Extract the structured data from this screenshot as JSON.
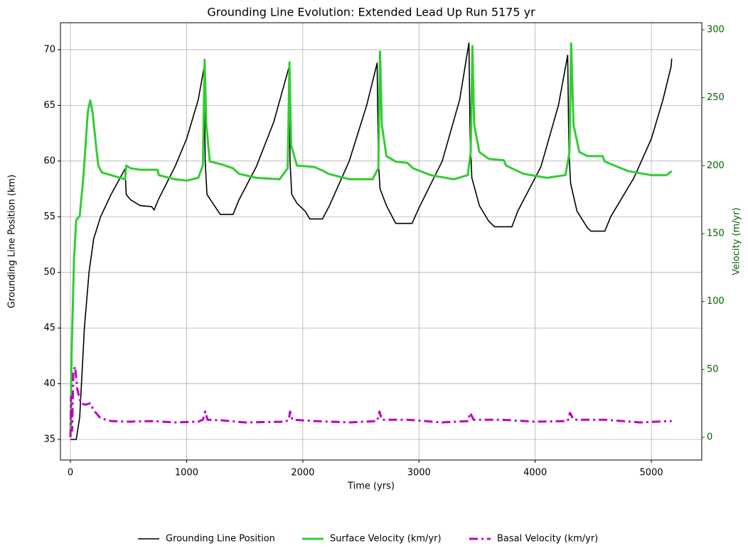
{
  "chart_data": {
    "type": "line",
    "title": "Grounding Line Evolution: Extended Lead Up Run 5175 yr",
    "x_label": "Time (yrs)",
    "y_label": "Grounding Line Position (km)",
    "y2_label": "Velocity (m/yr)",
    "xlim": [
      -86,
      5434
    ],
    "xticks": [
      0,
      1000,
      2000,
      3000,
      4000,
      5000
    ],
    "ylim": [
      33.15,
      72.42
    ],
    "yticks": [
      35,
      40,
      45,
      50,
      55,
      60,
      65,
      70
    ],
    "y2lim": [
      -16.7,
      305.2
    ],
    "y2ticks": [
      0,
      50,
      100,
      150,
      200,
      250,
      300
    ],
    "grid": true,
    "legend": "bottom",
    "series": [
      {
        "name": "Grounding Line Position",
        "color": "#000000",
        "width": 1.6,
        "x": [
          0,
          50,
          80,
          120,
          160,
          200,
          260,
          350,
          470,
          480,
          520,
          600,
          700,
          720,
          760,
          900,
          1000,
          1100,
          1150,
          1160,
          1175,
          1220,
          1290,
          1400,
          1450,
          1600,
          1750,
          1880,
          1890,
          1905,
          1950,
          2020,
          2060,
          2170,
          2230,
          2400,
          2550,
          2640,
          2650,
          2665,
          2720,
          2800,
          2940,
          3000,
          3200,
          3350,
          3430,
          3440,
          3455,
          3520,
          3600,
          3650,
          3800,
          3850,
          4050,
          4200,
          4280,
          4290,
          4305,
          4360,
          4450,
          4480,
          4600,
          4650,
          4850,
          5000,
          5100,
          5170,
          5175
        ],
        "values": [
          35,
          35,
          37,
          45,
          50,
          53,
          55,
          57,
          59.3,
          57,
          56.5,
          56,
          55.9,
          55.6,
          56.6,
          59.5,
          62,
          65.5,
          68.4,
          60,
          57,
          56.3,
          55.2,
          55.2,
          56.5,
          59.5,
          63.5,
          68.4,
          60,
          57,
          56.2,
          55.5,
          54.8,
          54.8,
          56,
          60,
          65,
          68.8,
          60,
          57.5,
          56,
          54.4,
          54.4,
          55.8,
          60,
          65.5,
          70.6,
          62,
          58.5,
          56,
          54.6,
          54.1,
          54.1,
          55.5,
          59.5,
          65,
          69.5,
          61,
          58,
          55.5,
          54,
          53.7,
          53.7,
          55,
          58.5,
          62,
          65.5,
          68.5,
          69.2
        ]
      },
      {
        "name": "Surface Velocity (km/yr)",
        "color": "#32cd32",
        "width": 3,
        "axis": "y2",
        "x": [
          0,
          10,
          30,
          50,
          80,
          110,
          150,
          170,
          190,
          220,
          240,
          270,
          350,
          470,
          480,
          520,
          600,
          750,
          760,
          900,
          1000,
          1100,
          1140,
          1155,
          1170,
          1200,
          1300,
          1400,
          1450,
          1600,
          1800,
          1870,
          1885,
          1900,
          1950,
          2100,
          2180,
          2220,
          2400,
          2600,
          2650,
          2665,
          2680,
          2720,
          2800,
          2900,
          2950,
          3100,
          3300,
          3420,
          3445,
          3460,
          3475,
          3520,
          3600,
          3730,
          3750,
          3900,
          4100,
          4260,
          4295,
          4310,
          4330,
          4380,
          4450,
          4580,
          4600,
          4800,
          5000,
          5130,
          5175
        ],
        "values": [
          0,
          60,
          130,
          160,
          163,
          190,
          240,
          248,
          240,
          215,
          200,
          195,
          193,
          190,
          200,
          198,
          197,
          197,
          193,
          190,
          189,
          191,
          200,
          278,
          230,
          203,
          201,
          198,
          194,
          191,
          190,
          198,
          276,
          215,
          200,
          199,
          196,
          194,
          190,
          190,
          198,
          284,
          230,
          207,
          203,
          202,
          198,
          193,
          190,
          193,
          210,
          288,
          230,
          210,
          205,
          204,
          200,
          194,
          191,
          193,
          210,
          290,
          230,
          210,
          207,
          207,
          203,
          196,
          193,
          193,
          196
        ]
      },
      {
        "name": "Basal Velocity (km/yr)",
        "color": "#bf00bf",
        "width": 3,
        "dash": "12,5,3,5",
        "axis": "y2",
        "x": [
          0,
          5,
          15,
          25,
          40,
          60,
          90,
          130,
          170,
          200,
          260,
          350,
          500,
          700,
          900,
          1100,
          1140,
          1160,
          1180,
          1300,
          1500,
          1850,
          1880,
          1890,
          1910,
          2100,
          2400,
          2640,
          2660,
          2680,
          2900,
          3200,
          3420,
          3440,
          3470,
          3700,
          4000,
          4280,
          4300,
          4330,
          4600,
          4900,
          5175
        ],
        "values": [
          0,
          30,
          5,
          48,
          52,
          35,
          25,
          24,
          25,
          20,
          14,
          12,
          11.5,
          12,
          11,
          11.5,
          13,
          19,
          13,
          12.5,
          11,
          11.5,
          13,
          19,
          13,
          12,
          11,
          12,
          19,
          13,
          13,
          11,
          12,
          18,
          13,
          13,
          11.5,
          12,
          18,
          13,
          13,
          11,
          12
        ]
      }
    ]
  }
}
